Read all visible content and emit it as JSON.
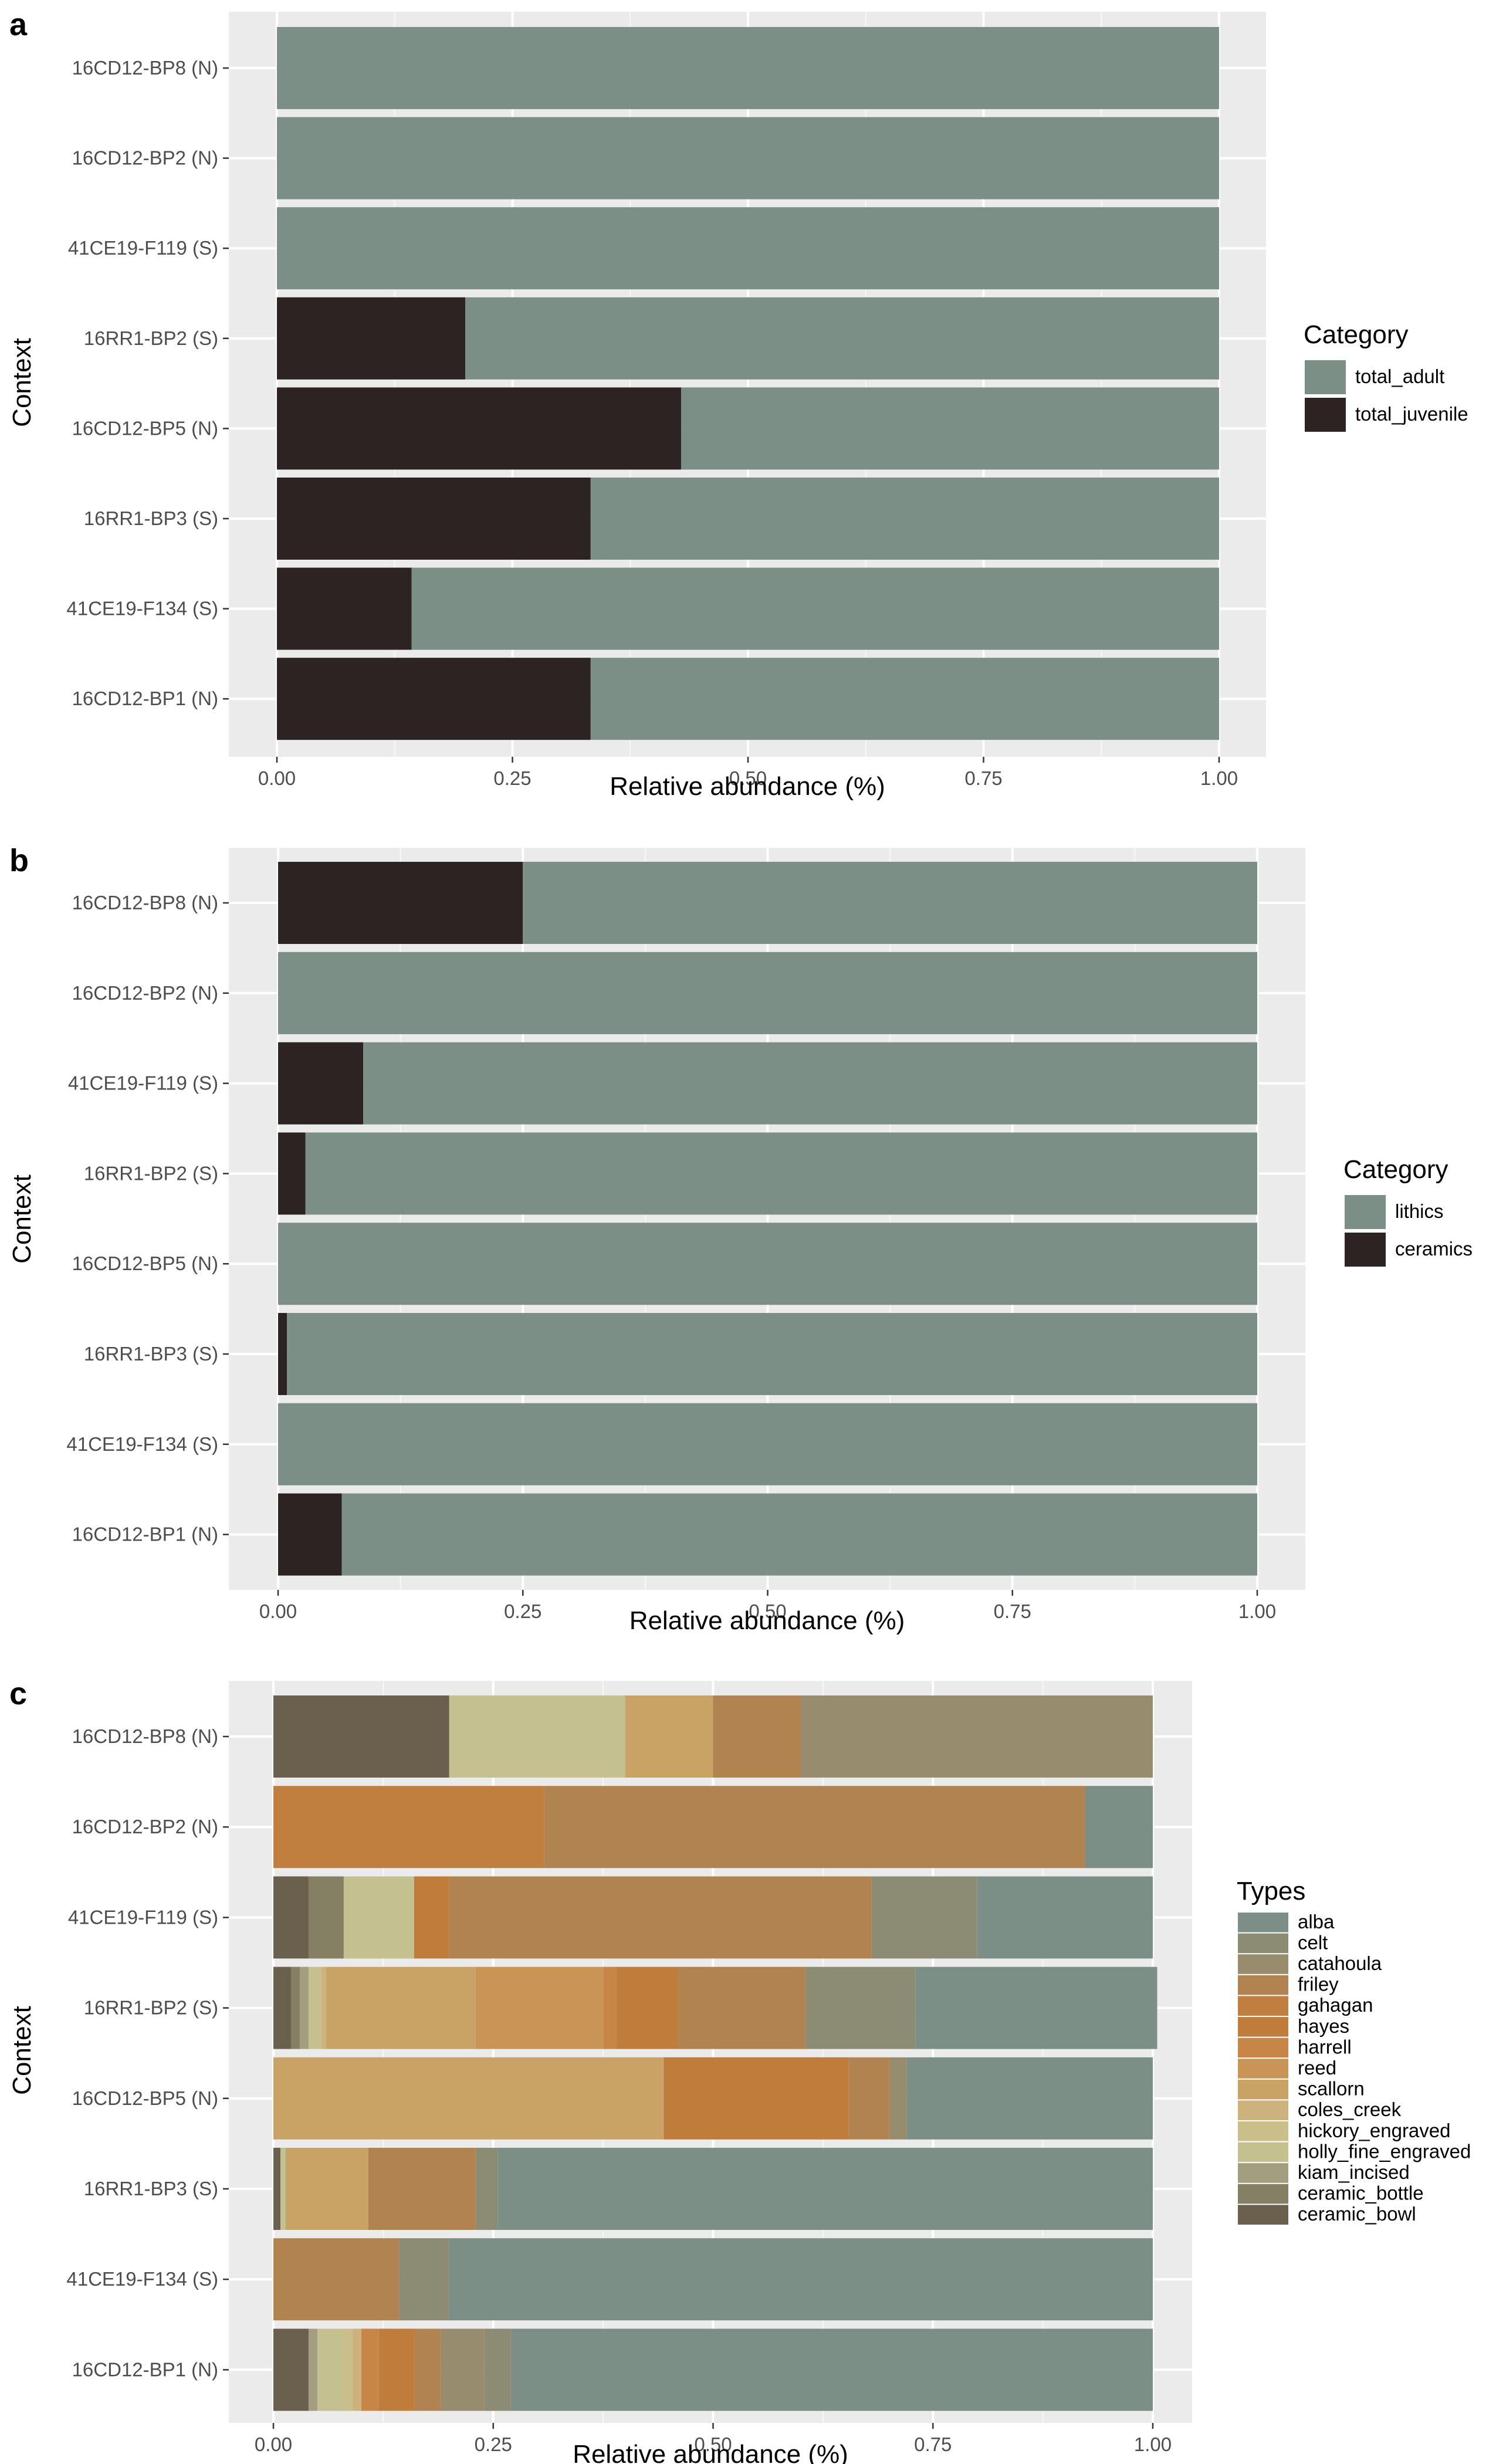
{
  "chart_data": [
    {
      "panel": "a",
      "type": "bar",
      "orientation": "horizontal",
      "stacked": true,
      "xlabel": "Relative abundance (%)",
      "ylabel": "Context",
      "xlim": [
        0,
        1
      ],
      "xticks": [
        "0.00",
        "0.25",
        "0.50",
        "0.75",
        "1.00"
      ],
      "grid": true,
      "legend_position": "right",
      "legend_title": "Category",
      "categories": [
        "16CD12-BP8 (N)",
        "16CD12-BP2 (N)",
        "41CE19-F119 (S)",
        "16RR1-BP2 (S)",
        "16CD12-BP5 (N)",
        "16RR1-BP3 (S)",
        "41CE19-F134 (S)",
        "16CD12-BP1 (N)"
      ],
      "series": [
        {
          "name": "total_juvenile",
          "color": "#2b2422",
          "values": [
            0,
            0,
            0,
            0.2,
            0.429,
            0.333,
            0.143,
            0.333
          ]
        },
        {
          "name": "total_adult",
          "color": "#7b8f86",
          "values": [
            1,
            1,
            1,
            0.8,
            0.571,
            0.667,
            0.857,
            0.667
          ]
        }
      ],
      "legend_order": [
        "total_adult",
        "total_juvenile"
      ]
    },
    {
      "panel": "b",
      "type": "bar",
      "orientation": "horizontal",
      "stacked": true,
      "xlabel": "Relative abundance (%)",
      "ylabel": "Context",
      "xlim": [
        0,
        1
      ],
      "xticks": [
        "0.00",
        "0.25",
        "0.50",
        "0.75",
        "1.00"
      ],
      "grid": true,
      "legend_position": "right",
      "legend_title": "Category",
      "categories": [
        "16CD12-BP8 (N)",
        "16CD12-BP2 (N)",
        "41CE19-F119 (S)",
        "16RR1-BP2 (S)",
        "16CD12-BP5 (N)",
        "16RR1-BP3 (S)",
        "41CE19-F134 (S)",
        "16CD12-BP1 (N)"
      ],
      "series": [
        {
          "name": "ceramics",
          "color": "#2b2422",
          "values": [
            0.25,
            0,
            0.087,
            0.028,
            0,
            0.009,
            0,
            0.065
          ]
        },
        {
          "name": "lithics",
          "color": "#7b8f86",
          "values": [
            0.75,
            1,
            0.913,
            0.972,
            1,
            0.991,
            1,
            0.935
          ]
        }
      ],
      "legend_order": [
        "lithics",
        "ceramics"
      ]
    },
    {
      "panel": "c",
      "type": "bar",
      "orientation": "horizontal",
      "stacked": true,
      "xlabel": "Relative abundance (%)",
      "ylabel": "Context",
      "xlim": [
        0,
        1
      ],
      "xticks": [
        "0.00",
        "0.25",
        "0.50",
        "0.75",
        "1.00"
      ],
      "grid": true,
      "legend_position": "right",
      "legend_title": "Types",
      "categories": [
        "16CD12-BP8 (N)",
        "16CD12-BP2 (N)",
        "41CE19-F119 (S)",
        "16RR1-BP2 (S)",
        "16CD12-BP5 (N)",
        "16RR1-BP3 (S)",
        "41CE19-F134 (S)",
        "16CD12-BP1 (N)"
      ],
      "series": [
        {
          "name": "ceramic_bowl",
          "color": "#6b5f4e",
          "values": [
            0.2,
            0,
            0.04,
            0.02,
            0,
            0.008,
            0,
            0.04
          ]
        },
        {
          "name": "ceramic_bottle",
          "color": "#857f64",
          "values": [
            0,
            0,
            0.04,
            0.01,
            0,
            0,
            0,
            0
          ]
        },
        {
          "name": "kiam_incised",
          "color": "#a29e80",
          "values": [
            0,
            0,
            0,
            0.01,
            0,
            0,
            0,
            0.01
          ]
        },
        {
          "name": "holly_fine_engraved",
          "color": "#c4c08f",
          "values": [
            0.2,
            0,
            0.08,
            0.01,
            0,
            0.006,
            0,
            0.03
          ]
        },
        {
          "name": "hickory_engraved",
          "color": "#cabf8a",
          "values": [
            0,
            0,
            0,
            0.005,
            0,
            0,
            0,
            0.01
          ]
        },
        {
          "name": "coles_creek",
          "color": "#ceb27e",
          "values": [
            0,
            0,
            0,
            0.005,
            0,
            0,
            0,
            0.01
          ]
        },
        {
          "name": "scallorn",
          "color": "#c9a265",
          "values": [
            0.1,
            0,
            0,
            0.17,
            0.444,
            0.094,
            0,
            0
          ]
        },
        {
          "name": "reed",
          "color": "#c99555",
          "values": [
            0,
            0,
            0,
            0.145,
            0,
            0,
            0,
            0
          ]
        },
        {
          "name": "harrell",
          "color": "#c78647",
          "values": [
            0,
            0,
            0,
            0.015,
            0,
            0,
            0,
            0.02
          ]
        },
        {
          "name": "hayes",
          "color": "#c07c3b",
          "values": [
            0,
            0,
            0.04,
            0.07,
            0.21,
            0,
            0,
            0.04
          ]
        },
        {
          "name": "gahagan",
          "color": "#c07f3f",
          "values": [
            0,
            0.308,
            0,
            0,
            0,
            0,
            0,
            0
          ]
        },
        {
          "name": "friley",
          "color": "#b08350",
          "values": [
            0.1,
            0.615,
            0.48,
            0.145,
            0.046,
            0.122,
            0.143,
            0.03
          ]
        },
        {
          "name": "catahoula",
          "color": "#988c6e",
          "values": [
            0.4,
            0,
            0,
            0,
            0.02,
            0,
            0,
            0.05
          ]
        },
        {
          "name": "celt",
          "color": "#8c8b74",
          "values": [
            0,
            0,
            0.12,
            0.125,
            0,
            0.025,
            0.057,
            0.03
          ]
        },
        {
          "name": "alba",
          "color": "#7b8f86",
          "values": [
            0,
            0.077,
            0.2,
            0.275,
            0.28,
            0.745,
            0.8,
            0.73
          ]
        }
      ],
      "legend_order": [
        "alba",
        "celt",
        "catahoula",
        "friley",
        "gahagan",
        "hayes",
        "harrell",
        "reed",
        "scallorn",
        "coles_creek",
        "hickory_engraved",
        "holly_fine_engraved",
        "kiam_incised",
        "ceramic_bottle",
        "ceramic_bowl"
      ]
    }
  ]
}
